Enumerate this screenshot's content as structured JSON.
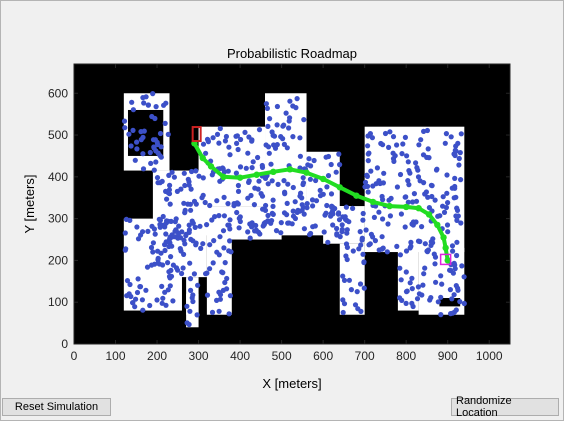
{
  "window": {
    "background": "#f0f0f0"
  },
  "buttons": {
    "reset_label": "Reset Simulation",
    "randomize_label": "Randomize Location"
  },
  "chart_data": {
    "type": "scatter",
    "title": "Probabilistic Roadmap",
    "xlabel": "X [meters]",
    "ylabel": "Y [meters]",
    "xlim": [
      0,
      1050
    ],
    "ylim": [
      0,
      670
    ],
    "xticks": [
      0,
      100,
      200,
      300,
      400,
      500,
      600,
      700,
      800,
      900,
      1000
    ],
    "yticks": [
      0,
      100,
      200,
      300,
      400,
      500,
      600
    ],
    "grid": false,
    "colors": {
      "map_background": "#000000",
      "free_space": "#ffffff",
      "nodes": "#3c50c8",
      "path": "#22dd22",
      "start_marker": "#cc2222",
      "goal_marker": "#dd22dd"
    },
    "path": [
      [
        290,
        480
      ],
      [
        310,
        445
      ],
      [
        330,
        425
      ],
      [
        360,
        400
      ],
      [
        400,
        398
      ],
      [
        440,
        405
      ],
      [
        480,
        412
      ],
      [
        520,
        418
      ],
      [
        560,
        410
      ],
      [
        600,
        395
      ],
      [
        640,
        375
      ],
      [
        680,
        355
      ],
      [
        720,
        340
      ],
      [
        760,
        330
      ],
      [
        800,
        328
      ],
      [
        830,
        325
      ],
      [
        855,
        310
      ],
      [
        875,
        285
      ],
      [
        890,
        255
      ],
      [
        895,
        230
      ],
      [
        900,
        200
      ]
    ],
    "start": [
      293,
      500
    ],
    "goal": [
      895,
      200
    ]
  }
}
